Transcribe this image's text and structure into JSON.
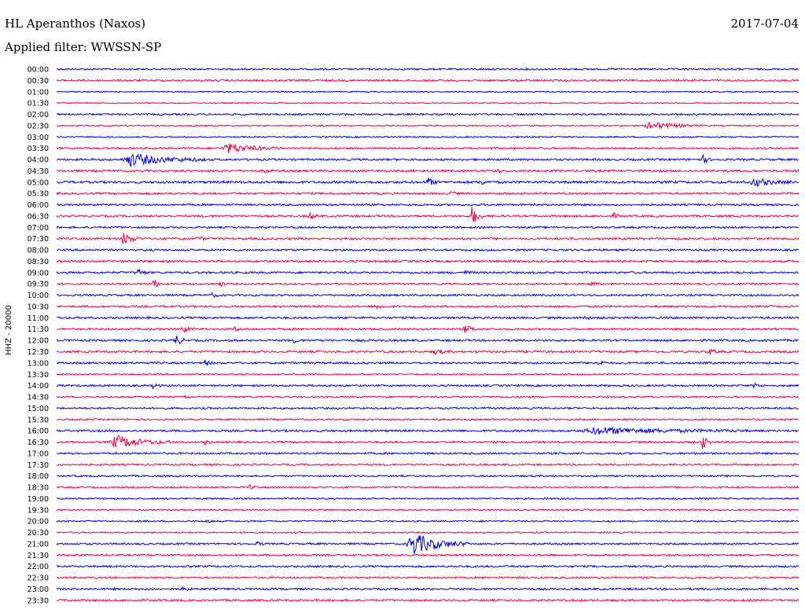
{
  "header": {
    "station": "HL Aperanthos (Naxos)",
    "date": "2017-07-04",
    "filter": "Applied filter: WWSSN-SP"
  },
  "chart_data": {
    "type": "line",
    "title": "HL Aperanthos (Naxos)",
    "ylabel": "HHZ - 20000",
    "xlabel": "",
    "colors": [
      "#0000dd",
      "#ee0044"
    ],
    "rows": [
      {
        "time": "00:00",
        "noise": 0.2,
        "events": []
      },
      {
        "time": "00:30",
        "noise": 0.28,
        "events": []
      },
      {
        "time": "01:00",
        "noise": 0.04,
        "events": []
      },
      {
        "time": "01:30",
        "noise": 0.04,
        "events": []
      },
      {
        "time": "02:00",
        "noise": 0.22,
        "events": []
      },
      {
        "time": "02:30",
        "noise": 0.06,
        "events": [
          {
            "x": 0.8,
            "amp": 5,
            "dur": 0.03
          }
        ]
      },
      {
        "time": "03:00",
        "noise": 0.1,
        "events": []
      },
      {
        "time": "03:30",
        "noise": 0.25,
        "events": [
          {
            "x": 0.23,
            "amp": 6,
            "dur": 0.03
          }
        ]
      },
      {
        "time": "04:00",
        "noise": 0.3,
        "events": [
          {
            "x": 0.1,
            "amp": 8,
            "dur": 0.04
          },
          {
            "x": 0.87,
            "amp": 6,
            "dur": 0.005
          }
        ]
      },
      {
        "time": "04:30",
        "noise": 0.35,
        "events": [
          {
            "x": 0.28,
            "amp": 3,
            "dur": 0.005
          },
          {
            "x": 0.59,
            "amp": 3,
            "dur": 0.005
          }
        ]
      },
      {
        "time": "05:00",
        "noise": 0.4,
        "events": [
          {
            "x": 0.5,
            "amp": 6,
            "dur": 0.006
          },
          {
            "x": 0.57,
            "amp": 4,
            "dur": 0.006
          },
          {
            "x": 0.94,
            "amp": 5,
            "dur": 0.02
          }
        ]
      },
      {
        "time": "05:30",
        "noise": 0.28,
        "events": [
          {
            "x": 0.53,
            "amp": 3,
            "dur": 0.005
          }
        ]
      },
      {
        "time": "06:00",
        "noise": 0.25,
        "events": []
      },
      {
        "time": "06:30",
        "noise": 0.3,
        "events": [
          {
            "x": 0.34,
            "amp": 5,
            "dur": 0.005
          },
          {
            "x": 0.56,
            "amp": 14,
            "dur": 0.006
          },
          {
            "x": 0.75,
            "amp": 4,
            "dur": 0.005
          }
        ]
      },
      {
        "time": "07:00",
        "noise": 0.25,
        "events": []
      },
      {
        "time": "07:30",
        "noise": 0.3,
        "events": [
          {
            "x": 0.09,
            "amp": 8,
            "dur": 0.01
          },
          {
            "x": 0.19,
            "amp": 3,
            "dur": 0.005
          }
        ]
      },
      {
        "time": "08:00",
        "noise": 0.28,
        "events": []
      },
      {
        "time": "08:30",
        "noise": 0.3,
        "events": []
      },
      {
        "time": "09:00",
        "noise": 0.3,
        "events": [
          {
            "x": 0.11,
            "amp": 5,
            "dur": 0.005
          },
          {
            "x": 0.55,
            "amp": 3,
            "dur": 0.005
          }
        ]
      },
      {
        "time": "09:30",
        "noise": 0.25,
        "events": [
          {
            "x": 0.13,
            "amp": 7,
            "dur": 0.005
          },
          {
            "x": 0.22,
            "amp": 3,
            "dur": 0.005
          },
          {
            "x": 0.72,
            "amp": 3,
            "dur": 0.005
          }
        ]
      },
      {
        "time": "10:00",
        "noise": 0.25,
        "events": [
          {
            "x": 0.21,
            "amp": 3,
            "dur": 0.005
          }
        ]
      },
      {
        "time": "10:30",
        "noise": 0.28,
        "events": [
          {
            "x": 0.43,
            "amp": 5,
            "dur": 0.005
          }
        ]
      },
      {
        "time": "11:00",
        "noise": 0.3,
        "events": [
          {
            "x": 0.71,
            "amp": 3,
            "dur": 0.005
          }
        ]
      },
      {
        "time": "11:30",
        "noise": 0.28,
        "events": [
          {
            "x": 0.17,
            "amp": 5,
            "dur": 0.008
          },
          {
            "x": 0.24,
            "amp": 3,
            "dur": 0.005
          },
          {
            "x": 0.55,
            "amp": 5,
            "dur": 0.008
          }
        ]
      },
      {
        "time": "12:00",
        "noise": 0.3,
        "events": [
          {
            "x": 0.16,
            "amp": 8,
            "dur": 0.006
          },
          {
            "x": 0.32,
            "amp": 3,
            "dur": 0.005
          }
        ]
      },
      {
        "time": "12:30",
        "noise": 0.3,
        "events": [
          {
            "x": 0.51,
            "amp": 3,
            "dur": 0.01
          },
          {
            "x": 0.88,
            "amp": 4,
            "dur": 0.005
          }
        ]
      },
      {
        "time": "13:00",
        "noise": 0.28,
        "events": [
          {
            "x": 0.2,
            "amp": 4,
            "dur": 0.005
          },
          {
            "x": 0.73,
            "amp": 5,
            "dur": 0.005
          }
        ]
      },
      {
        "time": "13:30",
        "noise": 0.12,
        "events": []
      },
      {
        "time": "14:00",
        "noise": 0.25,
        "events": [
          {
            "x": 0.13,
            "amp": 3,
            "dur": 0.005
          },
          {
            "x": 0.94,
            "amp": 3,
            "dur": 0.005
          }
        ]
      },
      {
        "time": "14:30",
        "noise": 0.22,
        "events": [
          {
            "x": 0.17,
            "amp": 3,
            "dur": 0.005
          }
        ]
      },
      {
        "time": "15:00",
        "noise": 0.25,
        "events": []
      },
      {
        "time": "15:30",
        "noise": 0.18,
        "events": []
      },
      {
        "time": "16:00",
        "noise": 0.3,
        "events": [
          {
            "x": 0.73,
            "amp": 4,
            "dur": 0.08
          }
        ]
      },
      {
        "time": "16:30",
        "noise": 0.25,
        "events": [
          {
            "x": 0.08,
            "amp": 8,
            "dur": 0.03
          },
          {
            "x": 0.2,
            "amp": 3,
            "dur": 0.005
          },
          {
            "x": 0.87,
            "amp": 10,
            "dur": 0.005
          }
        ]
      },
      {
        "time": "17:00",
        "noise": 0.25,
        "events": []
      },
      {
        "time": "17:30",
        "noise": 0.22,
        "events": []
      },
      {
        "time": "18:00",
        "noise": 0.2,
        "events": []
      },
      {
        "time": "18:30",
        "noise": 0.2,
        "events": [
          {
            "x": 0.26,
            "amp": 3,
            "dur": 0.005
          }
        ]
      },
      {
        "time": "19:00",
        "noise": 0.15,
        "events": []
      },
      {
        "time": "19:30",
        "noise": 0.15,
        "events": []
      },
      {
        "time": "20:00",
        "noise": 0.15,
        "events": [
          {
            "x": 0.2,
            "amp": 3,
            "dur": 0.005
          }
        ]
      },
      {
        "time": "20:30",
        "noise": 0.12,
        "events": []
      },
      {
        "time": "21:00",
        "noise": 0.25,
        "events": [
          {
            "x": 0.27,
            "amp": 3,
            "dur": 0.005
          },
          {
            "x": 0.48,
            "amp": 14,
            "dur": 0.03
          }
        ]
      },
      {
        "time": "21:30",
        "noise": 0.25,
        "events": []
      },
      {
        "time": "22:00",
        "noise": 0.25,
        "events": []
      },
      {
        "time": "22:30",
        "noise": 0.25,
        "events": []
      },
      {
        "time": "23:00",
        "noise": 0.28,
        "events": [
          {
            "x": 0.17,
            "amp": 3,
            "dur": 0.005
          }
        ]
      },
      {
        "time": "23:30",
        "noise": 0.3,
        "events": []
      }
    ]
  }
}
